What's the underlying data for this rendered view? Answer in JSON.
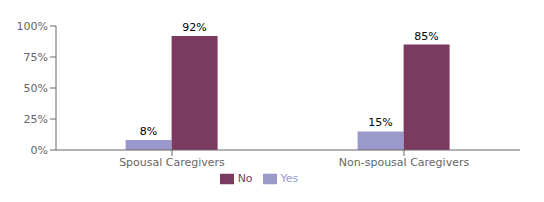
{
  "chart_data": {
    "type": "bar",
    "categories": [
      "Spousal Caregivers",
      "Non-spousal Caregivers"
    ],
    "series": [
      {
        "name": "Yes",
        "color": "#9999CC",
        "values": [
          8,
          15
        ],
        "value_labels": [
          "8%",
          "15%"
        ]
      },
      {
        "name": "No",
        "color": "#7B3B5E",
        "values": [
          92,
          85
        ],
        "value_labels": [
          "92%",
          "85%"
        ]
      }
    ],
    "ylim": [
      0,
      100
    ],
    "yticks": [
      {
        "value": 0,
        "label": "0%"
      },
      {
        "value": 25,
        "label": "25%"
      },
      {
        "value": 50,
        "label": "50%"
      },
      {
        "value": 75,
        "label": "75%"
      },
      {
        "value": 100,
        "label": "100%"
      }
    ],
    "grid": false,
    "legend": "bottom",
    "data_labels": true
  }
}
